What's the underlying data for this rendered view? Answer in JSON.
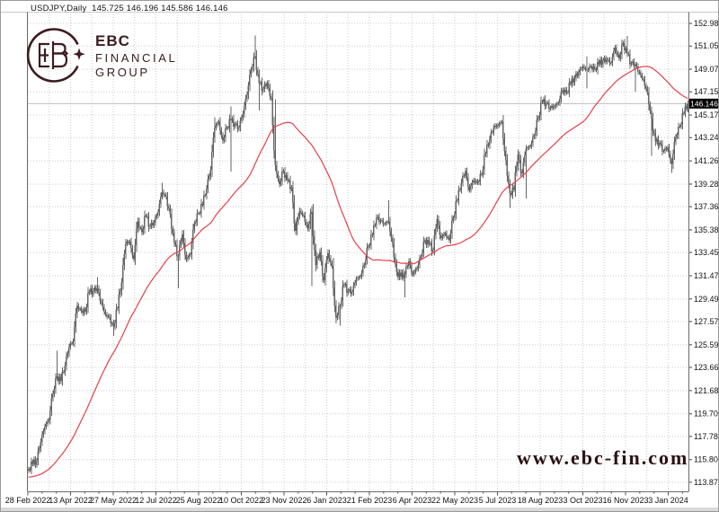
{
  "header": {
    "title_line": "USDJPY,Daily  145.725 146.196 145.586 146.146"
  },
  "logo": {
    "line1": "EBC",
    "line2": "FINANCIAL",
    "line3": "GROUP",
    "color": "#3b1c1f"
  },
  "watermark": {
    "text": "www.ebc-fin.com",
    "color": "#2b1114"
  },
  "chart_data": {
    "type": "candlestick",
    "symbol": "USDJPY",
    "timeframe": "Daily",
    "title": "USDJPY,Daily",
    "ohlc_header": {
      "open": 145.725,
      "high": 146.196,
      "low": 145.586,
      "close": 146.146
    },
    "last_price": 146.146,
    "ylim": [
      113.1,
      153.75
    ],
    "grid": "dotted",
    "legend_position": "none",
    "x_tick_labels": [
      "28 Feb 2022",
      "13 Apr 2022",
      "27 May 2022",
      "12 Jul 2022",
      "25 Aug 2022",
      "10 Oct 2022",
      "23 Nov 2022",
      "6 Jan 2023",
      "21 Feb 2023",
      "6 Apr 2023",
      "22 May 2023",
      "5 Jul 2023",
      "18 Aug 2023",
      "3 Oct 2023",
      "16 Nov 2023",
      "3 Jan 2024"
    ],
    "y_tick_labels": [
      152.98,
      151.055,
      149.075,
      147.15,
      145.17,
      143.245,
      141.265,
      139.285,
      137.36,
      135.38,
      133.455,
      131.475,
      129.495,
      127.57,
      125.59,
      123.665,
      121.685,
      119.705,
      117.78,
      115.8,
      113.875
    ],
    "sample_step_trading_days": 3,
    "closes": [
      115.0,
      115.45,
      115.7,
      117.3,
      118.6,
      119.2,
      121.4,
      122.9,
      122.5,
      123.8,
      125.4,
      125.9,
      128.9,
      128.5,
      128.4,
      130.1,
      130.2,
      130.4,
      129.2,
      128.2,
      127.9,
      127.1,
      128.7,
      130.9,
      134.2,
      134.4,
      132.9,
      136.1,
      135.2,
      136.6,
      135.7,
      136.0,
      136.9,
      138.6,
      138.2,
      136.7,
      134.3,
      133.2,
      135.0,
      132.9,
      133.3,
      135.9,
      136.8,
      137.5,
      138.9,
      140.5,
      144.1,
      144.6,
      143.0,
      144.1,
      144.7,
      144.4,
      144.1,
      145.3,
      146.9,
      149.0,
      150.2,
      147.9,
      147.4,
      147.9,
      146.6,
      140.9,
      139.3,
      140.4,
      139.6,
      139.0,
      135.3,
      137.0,
      136.6,
      135.5,
      136.9,
      132.4,
      133.5,
      131.1,
      133.4,
      132.3,
      127.9,
      128.9,
      130.7,
      130.2,
      130.1,
      131.2,
      131.4,
      132.4,
      134.0,
      134.9,
      136.4,
      136.2,
      135.9,
      136.1,
      134.2,
      131.8,
      131.4,
      131.6,
      132.7,
      131.6,
      132.1,
      133.1,
      134.5,
      134.2,
      133.7,
      136.3,
      134.7,
      135.1,
      134.5,
      136.4,
      137.9,
      139.4,
      140.4,
      138.8,
      139.6,
      139.4,
      140.1,
      141.9,
      143.1,
      144.1,
      144.3,
      144.6,
      141.3,
      138.5,
      138.8,
      141.8,
      140.2,
      142.3,
      142.5,
      143.4,
      144.9,
      146.3,
      146.2,
      145.8,
      145.9,
      146.2,
      147.3,
      147.1,
      147.8,
      148.3,
      148.8,
      149.3,
      149.0,
      149.3,
      149.1,
      149.5,
      149.8,
      149.9,
      149.6,
      150.9,
      150.0,
      151.3,
      150.4,
      149.6,
      149.5,
      148.8,
      148.2,
      147.1,
      144.9,
      142.9,
      142.8,
      142.1,
      142.4,
      141.0,
      143.3,
      144.2,
      145.3,
      146.146
    ],
    "spikes": {
      "21": {
        "h": 125.1
      },
      "51": {
        "h": 131.35
      },
      "63": {
        "l": 126.36
      },
      "99": {
        "h": 139.38
      },
      "111": {
        "l": 130.41
      },
      "138": {
        "h": 144.99
      },
      "150": {
        "h": 145.9,
        "l": 140.36
      },
      "168": {
        "h": 151.94
      },
      "171": {
        "l": 145.56
      },
      "183": {
        "h": 146.5
      },
      "210": {
        "h": 137.4,
        "l": 130.6
      },
      "231": {
        "l": 127.23
      },
      "267": {
        "h": 137.91
      },
      "279": {
        "l": 129.64
      },
      "357": {
        "l": 137.25
      },
      "369": {
        "l": 138.05
      },
      "414": {
        "h": 150.16,
        "l": 147.43
      },
      "444": {
        "h": 151.91
      },
      "450": {
        "l": 147.15
      },
      "462": {
        "l": 141.71
      },
      "477": {
        "l": 140.25
      },
      "489": {
        "h": 146.196,
        "l": 145.586
      }
    },
    "ma": {
      "type": "SMA",
      "window": 60,
      "pad": 114.3,
      "color": "#e5404b"
    },
    "candle_color": "#666666",
    "grid_color": "#cccccc",
    "frame_color": "#6a6a6a",
    "last_price_line_color": "#bdbdbd",
    "price_box": {
      "bg": "#000000",
      "fg": "#ffffff"
    }
  }
}
